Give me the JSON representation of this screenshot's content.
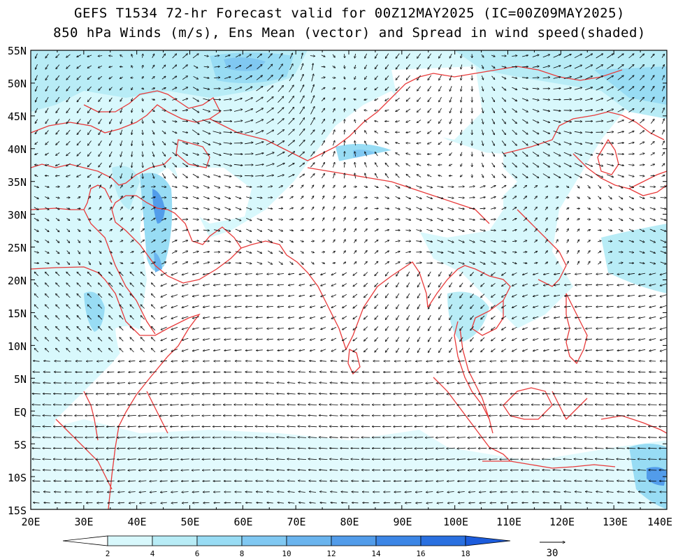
{
  "title": {
    "line1": "GEFS T1534 72-hr Forecast valid for 00Z12MAY2025 (IC=00Z09MAY2025)",
    "line2": "850 hPa Winds (m/s), Ens Mean (vector) and Spread in wind speed(shaded)"
  },
  "map": {
    "lon_range": [
      20,
      140
    ],
    "lat_range": [
      -15,
      55
    ],
    "lon_ticks": [
      "20E",
      "30E",
      "40E",
      "50E",
      "60E",
      "70E",
      "80E",
      "90E",
      "100E",
      "110E",
      "120E",
      "130E",
      "140E"
    ],
    "lat_ticks": [
      "55N",
      "50N",
      "45N",
      "40N",
      "35N",
      "30N",
      "25N",
      "20N",
      "15N",
      "10N",
      "5N",
      "EQ",
      "5S",
      "10S",
      "15S"
    ],
    "boundary_color": "#e83a3a",
    "frame_color": "#000000"
  },
  "colorbar": {
    "labels": [
      "2",
      "4",
      "6",
      "8",
      "10",
      "12",
      "14",
      "16",
      "18"
    ],
    "colors": [
      "#ffffff",
      "#d8f8fc",
      "#b8ecf6",
      "#98dcf4",
      "#80c8f2",
      "#6ab4ee",
      "#529cea",
      "#3c86e6",
      "#2a70e0",
      "#1c5cdc"
    ]
  },
  "reference_vector": {
    "label": "30"
  }
}
